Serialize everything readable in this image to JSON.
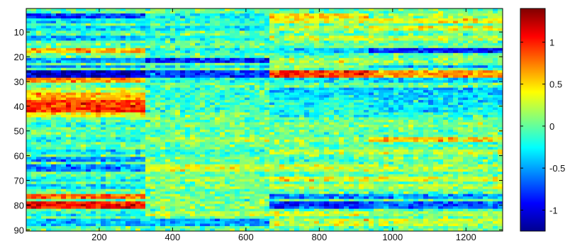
{
  "chart_data": {
    "type": "heatmap",
    "title": "",
    "xlabel": "",
    "ylabel": "",
    "xlim": [
      1,
      1300
    ],
    "ylim": [
      1,
      90
    ],
    "y_direction": "top-to-bottom",
    "x_ticks": [
      200,
      400,
      600,
      800,
      1000,
      1200
    ],
    "y_ticks": [
      10,
      20,
      30,
      40,
      50,
      60,
      70,
      80,
      90
    ],
    "colormap": "jet",
    "colorbar": {
      "placement": "right",
      "range": [
        -1.25,
        1.4
      ],
      "ticks": [
        1,
        0.5,
        0,
        -0.5,
        -1
      ]
    },
    "column_blocks": [
      {
        "x_start": 1,
        "x_end": 330
      },
      {
        "x_start": 330,
        "x_end": 670
      },
      {
        "x_start": 670,
        "x_end": 930
      },
      {
        "x_start": 930,
        "x_end": 1300
      }
    ],
    "row_bands": [
      {
        "rows": [
          3,
          4
        ],
        "values": [
          -0.8,
          -0.25,
          0.5,
          0.15
        ]
      },
      {
        "rows": [
          5,
          6
        ],
        "values": [
          -0.3,
          -0.2,
          0.35,
          0.4
        ]
      },
      {
        "rows": [
          8,
          9
        ],
        "values": [
          -0.35,
          -0.3,
          0.2,
          0.35
        ]
      },
      {
        "rows": [
          12,
          13
        ],
        "values": [
          -0.45,
          -0.2,
          0.25,
          0.2
        ]
      },
      {
        "rows": [
          17,
          18
        ],
        "values": [
          0.55,
          -0.2,
          -0.3,
          -0.85
        ]
      },
      {
        "rows": [
          21,
          22
        ],
        "values": [
          -0.5,
          -0.85,
          0.2,
          0.1
        ]
      },
      {
        "rows": [
          24,
          24
        ],
        "values": [
          -0.5,
          -0.3,
          0.1,
          -0.5
        ]
      },
      {
        "rows": [
          26,
          28
        ],
        "values": [
          -1.05,
          -0.75,
          0.95,
          0.65
        ]
      },
      {
        "rows": [
          29,
          30
        ],
        "values": [
          0.7,
          -0.2,
          -0.25,
          -0.4
        ]
      },
      {
        "rows": [
          33,
          34
        ],
        "values": [
          0.25,
          -0.15,
          -0.35,
          -0.4
        ]
      },
      {
        "rows": [
          35,
          37
        ],
        "values": [
          0.6,
          -0.1,
          -0.3,
          -0.35
        ]
      },
      {
        "rows": [
          38,
          42
        ],
        "values": [
          0.95,
          -0.1,
          -0.2,
          -0.3
        ]
      },
      {
        "rows": [
          43,
          44
        ],
        "values": [
          0.4,
          0.05,
          -0.2,
          -0.15
        ]
      },
      {
        "rows": [
          47,
          48
        ],
        "values": [
          -0.2,
          0.1,
          0.05,
          0.1
        ]
      },
      {
        "rows": [
          53,
          54
        ],
        "values": [
          -0.2,
          0.2,
          0.1,
          0.55
        ]
      },
      {
        "rows": [
          58,
          59
        ],
        "values": [
          -0.3,
          -0.15,
          0.2,
          0.2
        ]
      },
      {
        "rows": [
          61,
          62
        ],
        "values": [
          -0.55,
          0.05,
          -0.1,
          0.05
        ]
      },
      {
        "rows": [
          64,
          66
        ],
        "values": [
          -0.55,
          0.3,
          0.25,
          0.2
        ]
      },
      {
        "rows": [
          69,
          70
        ],
        "values": [
          -0.2,
          0.15,
          0.35,
          0.3
        ]
      },
      {
        "rows": [
          72,
          73
        ],
        "values": [
          -0.3,
          0.1,
          0.25,
          0.2
        ]
      },
      {
        "rows": [
          76,
          77
        ],
        "values": [
          0.8,
          0.05,
          -0.6,
          -0.5
        ]
      },
      {
        "rows": [
          79,
          81
        ],
        "values": [
          1.05,
          0.1,
          -0.8,
          -0.65
        ]
      },
      {
        "rows": [
          83,
          84
        ],
        "values": [
          -0.2,
          0.2,
          0.3,
          0.15
        ]
      },
      {
        "rows": [
          86,
          88
        ],
        "values": [
          -0.4,
          -0.5,
          0.3,
          0.25
        ]
      }
    ]
  }
}
